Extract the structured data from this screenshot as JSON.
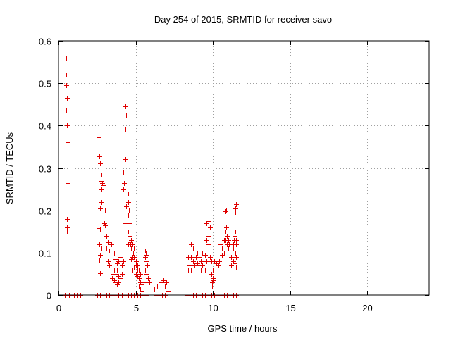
{
  "chart_data": {
    "type": "scatter",
    "title": "Day 254 of 2015, SRMTID for receiver savo",
    "xlabel": "GPS time / hours",
    "ylabel": "SRMTID / TECUs",
    "xlim": [
      0,
      24
    ],
    "ylim": [
      0,
      0.6
    ],
    "xticks": [
      0,
      5,
      10,
      15,
      20
    ],
    "yticks": [
      0,
      0.1,
      0.2,
      0.3,
      0.4,
      0.5,
      0.6
    ],
    "xtick_labels": [
      "0",
      "5",
      "10",
      "15",
      "20"
    ],
    "ytick_labels": [
      "0",
      "0.1",
      "0.2",
      "0.3",
      "0.4",
      "0.5",
      "0.6"
    ],
    "grid": true,
    "marker": "+",
    "color": "#e00000",
    "series": [
      {
        "name": "SRMTID",
        "points": [
          [
            0.5,
            0.56
          ],
          [
            0.5,
            0.52
          ],
          [
            0.52,
            0.495
          ],
          [
            0.55,
            0.465
          ],
          [
            0.5,
            0.435
          ],
          [
            0.55,
            0.4
          ],
          [
            0.6,
            0.39
          ],
          [
            0.6,
            0.36
          ],
          [
            0.6,
            0.265
          ],
          [
            0.6,
            0.235
          ],
          [
            0.6,
            0.19
          ],
          [
            0.55,
            0.18
          ],
          [
            0.55,
            0.16
          ],
          [
            0.55,
            0.15
          ],
          [
            2.6,
            0.372
          ],
          [
            2.65,
            0.328
          ],
          [
            2.7,
            0.31
          ],
          [
            2.8,
            0.285
          ],
          [
            2.75,
            0.27
          ],
          [
            2.85,
            0.265
          ],
          [
            2.9,
            0.26
          ],
          [
            2.8,
            0.25
          ],
          [
            2.75,
            0.24
          ],
          [
            2.8,
            0.22
          ],
          [
            2.7,
            0.205
          ],
          [
            2.9,
            0.2
          ],
          [
            3.0,
            0.2
          ],
          [
            2.95,
            0.17
          ],
          [
            3.0,
            0.165
          ],
          [
            2.6,
            0.158
          ],
          [
            2.7,
            0.155
          ],
          [
            2.65,
            0.12
          ],
          [
            2.8,
            0.11
          ],
          [
            2.7,
            0.095
          ],
          [
            2.65,
            0.082
          ],
          [
            2.7,
            0.052
          ],
          [
            3.1,
            0.14
          ],
          [
            3.2,
            0.125
          ],
          [
            3.1,
            0.11
          ],
          [
            3.3,
            0.105
          ],
          [
            3.4,
            0.12
          ],
          [
            3.2,
            0.08
          ],
          [
            3.3,
            0.07
          ],
          [
            3.5,
            0.065
          ],
          [
            3.6,
            0.1
          ],
          [
            3.6,
            0.06
          ],
          [
            3.5,
            0.05
          ],
          [
            3.45,
            0.04
          ],
          [
            3.6,
            0.035
          ],
          [
            3.7,
            0.03
          ],
          [
            3.8,
            0.025
          ],
          [
            3.9,
            0.03
          ],
          [
            3.7,
            0.05
          ],
          [
            3.8,
            0.06
          ],
          [
            3.9,
            0.045
          ],
          [
            4.0,
            0.04
          ],
          [
            4.0,
            0.06
          ],
          [
            4.1,
            0.05
          ],
          [
            4.1,
            0.07
          ],
          [
            4.2,
            0.08
          ],
          [
            4.0,
            0.09
          ],
          [
            3.9,
            0.08
          ],
          [
            3.8,
            0.075
          ],
          [
            3.7,
            0.085
          ],
          [
            4.3,
            0.47
          ],
          [
            4.35,
            0.445
          ],
          [
            4.4,
            0.425
          ],
          [
            4.35,
            0.39
          ],
          [
            4.3,
            0.38
          ],
          [
            4.3,
            0.345
          ],
          [
            4.35,
            0.32
          ],
          [
            4.2,
            0.29
          ],
          [
            4.25,
            0.265
          ],
          [
            4.2,
            0.25
          ],
          [
            4.5,
            0.24
          ],
          [
            4.5,
            0.22
          ],
          [
            4.4,
            0.21
          ],
          [
            4.55,
            0.2
          ],
          [
            4.5,
            0.19
          ],
          [
            4.6,
            0.17
          ],
          [
            4.3,
            0.17
          ],
          [
            4.5,
            0.15
          ],
          [
            4.6,
            0.14
          ],
          [
            4.7,
            0.13
          ],
          [
            4.65,
            0.12
          ],
          [
            4.7,
            0.11
          ],
          [
            4.75,
            0.1
          ],
          [
            4.8,
            0.09
          ],
          [
            4.7,
            0.085
          ],
          [
            4.6,
            0.1
          ],
          [
            4.5,
            0.12
          ],
          [
            4.6,
            0.125
          ],
          [
            4.8,
            0.12
          ],
          [
            4.9,
            0.11
          ],
          [
            4.85,
            0.1
          ],
          [
            4.9,
            0.09
          ],
          [
            5.0,
            0.08
          ],
          [
            5.0,
            0.07
          ],
          [
            5.1,
            0.06
          ],
          [
            5.0,
            0.05
          ],
          [
            5.1,
            0.045
          ],
          [
            5.2,
            0.04
          ],
          [
            5.3,
            0.03
          ],
          [
            5.2,
            0.02
          ],
          [
            5.3,
            0.015
          ],
          [
            5.4,
            0.01
          ],
          [
            5.4,
            0.025
          ],
          [
            5.5,
            0.03
          ],
          [
            5.3,
            0.05
          ],
          [
            5.2,
            0.06
          ],
          [
            5.1,
            0.07
          ],
          [
            4.9,
            0.065
          ],
          [
            4.8,
            0.06
          ],
          [
            5.6,
            0.105
          ],
          [
            5.65,
            0.1
          ],
          [
            5.7,
            0.095
          ],
          [
            5.6,
            0.09
          ],
          [
            5.7,
            0.08
          ],
          [
            5.75,
            0.07
          ],
          [
            5.6,
            0.06
          ],
          [
            5.7,
            0.05
          ],
          [
            5.8,
            0.04
          ],
          [
            5.9,
            0.03
          ],
          [
            6.0,
            0.02
          ],
          [
            6.2,
            0.015
          ],
          [
            6.4,
            0.02
          ],
          [
            6.6,
            0.03
          ],
          [
            6.8,
            0.035
          ],
          [
            7.0,
            0.03
          ],
          [
            7.05,
            0.01
          ],
          [
            6.9,
            0.02
          ],
          [
            8.4,
            0.09
          ],
          [
            8.5,
            0.1
          ],
          [
            8.6,
            0.12
          ],
          [
            8.7,
            0.11
          ],
          [
            8.6,
            0.09
          ],
          [
            8.7,
            0.08
          ],
          [
            8.8,
            0.07
          ],
          [
            8.9,
            0.09
          ],
          [
            8.5,
            0.07
          ],
          [
            8.4,
            0.06
          ],
          [
            8.6,
            0.06
          ],
          [
            9.0,
            0.1
          ],
          [
            9.1,
            0.09
          ],
          [
            9.2,
            0.08
          ],
          [
            9.3,
            0.07
          ],
          [
            9.4,
            0.08
          ],
          [
            9.2,
            0.06
          ],
          [
            9.1,
            0.07
          ],
          [
            9.0,
            0.075
          ],
          [
            9.3,
            0.1
          ],
          [
            9.4,
            0.065
          ],
          [
            9.5,
            0.06
          ],
          [
            9.6,
            0.08
          ],
          [
            9.5,
            0.095
          ],
          [
            9.6,
            0.13
          ],
          [
            9.7,
            0.12
          ],
          [
            9.6,
            0.17
          ],
          [
            9.7,
            0.175
          ],
          [
            9.8,
            0.16
          ],
          [
            9.7,
            0.14
          ],
          [
            9.8,
            0.09
          ],
          [
            9.9,
            0.08
          ],
          [
            10.0,
            0.06
          ],
          [
            9.9,
            0.05
          ],
          [
            10.0,
            0.04
          ],
          [
            9.95,
            0.03
          ],
          [
            10.0,
            0.035
          ],
          [
            9.95,
            0.02
          ],
          [
            10.1,
            0.08
          ],
          [
            10.2,
            0.075
          ],
          [
            10.3,
            0.065
          ],
          [
            10.35,
            0.07
          ],
          [
            10.4,
            0.08
          ],
          [
            10.3,
            0.1
          ],
          [
            10.5,
            0.12
          ],
          [
            10.6,
            0.11
          ],
          [
            10.7,
            0.1
          ],
          [
            10.6,
            0.095
          ],
          [
            10.5,
            0.1
          ],
          [
            10.7,
            0.13
          ],
          [
            10.8,
            0.15
          ],
          [
            10.85,
            0.16
          ],
          [
            10.9,
            0.14
          ],
          [
            10.8,
            0.13
          ],
          [
            10.9,
            0.12
          ],
          [
            11.0,
            0.11
          ],
          [
            10.75,
            0.195
          ],
          [
            10.85,
            0.2
          ],
          [
            10.8,
            0.198
          ],
          [
            11.0,
            0.13
          ],
          [
            11.05,
            0.12
          ],
          [
            11.1,
            0.1
          ],
          [
            11.2,
            0.09
          ],
          [
            11.3,
            0.08
          ],
          [
            11.2,
            0.07
          ],
          [
            11.3,
            0.11
          ],
          [
            11.3,
            0.12
          ],
          [
            11.35,
            0.13
          ],
          [
            11.4,
            0.14
          ],
          [
            11.45,
            0.15
          ],
          [
            11.5,
            0.13
          ],
          [
            11.5,
            0.12
          ],
          [
            11.45,
            0.1
          ],
          [
            11.5,
            0.09
          ],
          [
            11.4,
            0.075
          ],
          [
            11.5,
            0.065
          ],
          [
            11.45,
            0.205
          ],
          [
            11.5,
            0.215
          ],
          [
            11.45,
            0.195
          ],
          [
            0.4,
            0
          ],
          [
            0.6,
            0
          ],
          [
            0.7,
            0
          ],
          [
            1.0,
            0
          ],
          [
            1.2,
            0
          ],
          [
            1.4,
            0
          ],
          [
            2.5,
            0
          ],
          [
            2.7,
            0
          ],
          [
            2.9,
            0
          ],
          [
            3.1,
            0
          ],
          [
            3.3,
            0
          ],
          [
            3.5,
            0
          ],
          [
            3.7,
            0
          ],
          [
            3.9,
            0
          ],
          [
            4.1,
            0
          ],
          [
            4.3,
            0
          ],
          [
            4.5,
            0
          ],
          [
            4.7,
            0
          ],
          [
            4.9,
            0
          ],
          [
            5.1,
            0
          ],
          [
            5.3,
            0
          ],
          [
            5.5,
            0
          ],
          [
            5.7,
            0
          ],
          [
            6.3,
            0
          ],
          [
            6.5,
            0
          ],
          [
            6.7,
            0
          ],
          [
            6.9,
            0
          ],
          [
            8.3,
            0
          ],
          [
            8.5,
            0
          ],
          [
            8.7,
            0
          ],
          [
            8.9,
            0
          ],
          [
            9.1,
            0
          ],
          [
            9.3,
            0
          ],
          [
            9.5,
            0
          ],
          [
            9.7,
            0
          ],
          [
            9.9,
            0
          ],
          [
            10.1,
            0
          ],
          [
            10.3,
            0
          ],
          [
            10.5,
            0
          ],
          [
            10.7,
            0
          ],
          [
            10.9,
            0
          ],
          [
            11.1,
            0
          ],
          [
            11.3,
            0
          ],
          [
            11.5,
            0
          ]
        ]
      }
    ]
  }
}
